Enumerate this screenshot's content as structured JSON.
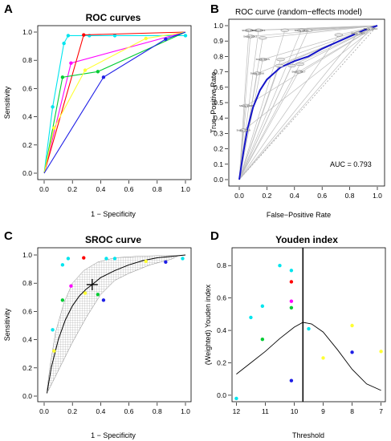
{
  "chart_data": [
    {
      "panel": "A",
      "type": "line",
      "title": "ROC curves",
      "xlabel": "1 − Specificity",
      "ylabel": "Sensitivity",
      "xlim": [
        0,
        1
      ],
      "ylim": [
        0,
        1
      ],
      "xticks": [
        "0.0",
        "0.2",
        "0.4",
        "0.6",
        "0.8",
        "1.0"
      ],
      "yticks": [
        "0.0",
        "0.2",
        "0.4",
        "0.6",
        "0.8",
        "1.0"
      ],
      "series": [
        {
          "color": "#00e5ee",
          "points": [
            [
              0,
              0
            ],
            [
              0.06,
              0.47
            ],
            [
              0.14,
              0.92
            ],
            [
              0.17,
              0.975
            ],
            [
              0.32,
              0.975
            ],
            [
              0.5,
              0.975
            ],
            [
              1,
              0.975
            ]
          ]
        },
        {
          "color": "#ff00ff",
          "points": [
            [
              0,
              0
            ],
            [
              0.19,
              0.78
            ],
            [
              1,
              1
            ]
          ]
        },
        {
          "color": "#ff0000",
          "points": [
            [
              0,
              0
            ],
            [
              0.28,
              0.98
            ],
            [
              1,
              1
            ]
          ]
        },
        {
          "color": "#00cc33",
          "points": [
            [
              0,
              0
            ],
            [
              0.13,
              0.68
            ],
            [
              0.38,
              0.72
            ],
            [
              1,
              1
            ]
          ]
        },
        {
          "color": "#ffff33",
          "points": [
            [
              0,
              0
            ],
            [
              0.07,
              0.32
            ],
            [
              0.29,
              0.73
            ],
            [
              0.72,
              0.955
            ],
            [
              1,
              1
            ]
          ]
        },
        {
          "color": "#1e1ee6",
          "points": [
            [
              0,
              0
            ],
            [
              0.42,
              0.68
            ],
            [
              0.86,
              0.95
            ],
            [
              1,
              1
            ]
          ]
        }
      ]
    },
    {
      "panel": "B",
      "type": "line",
      "title": "ROC curve (random−effects model)",
      "xlabel": "False−Positive Rate",
      "ylabel": "True−Positive Rate",
      "xlim": [
        0,
        1
      ],
      "ylim": [
        0,
        1
      ],
      "xticks": [
        "0.0",
        "0.2",
        "0.4",
        "0.6",
        "0.8",
        "1.0"
      ],
      "yticks": [
        "0.0",
        "0.1",
        "0.2",
        "0.3",
        "0.4",
        "0.5",
        "0.6",
        "0.7",
        "0.8",
        "0.9",
        "1.0"
      ],
      "annotation": "AUC = 0.793",
      "summary_curve": [
        [
          0,
          0
        ],
        [
          0.03,
          0.18
        ],
        [
          0.06,
          0.33
        ],
        [
          0.1,
          0.47
        ],
        [
          0.15,
          0.58
        ],
        [
          0.2,
          0.65
        ],
        [
          0.3,
          0.73
        ],
        [
          0.4,
          0.77
        ],
        [
          0.5,
          0.8
        ],
        [
          0.6,
          0.85
        ],
        [
          0.7,
          0.89
        ],
        [
          0.8,
          0.93
        ],
        [
          0.9,
          0.97
        ],
        [
          1,
          1
        ]
      ],
      "study_points": [
        {
          "fpr": 0.07,
          "tpr": 0.97
        },
        {
          "fpr": 0.14,
          "tpr": 0.97
        },
        {
          "fpr": 0.08,
          "tpr": 0.93
        },
        {
          "fpr": 0.17,
          "tpr": 0.92
        },
        {
          "fpr": 0.33,
          "tpr": 0.97
        },
        {
          "fpr": 0.45,
          "tpr": 0.97
        },
        {
          "fpr": 0.5,
          "tpr": 0.97
        },
        {
          "fpr": 0.95,
          "tpr": 0.98
        },
        {
          "fpr": 0.17,
          "tpr": 0.78
        },
        {
          "fpr": 0.3,
          "tpr": 0.78
        },
        {
          "fpr": 0.13,
          "tpr": 0.69
        },
        {
          "fpr": 0.43,
          "tpr": 0.7
        },
        {
          "fpr": 0.38,
          "tpr": 0.74
        },
        {
          "fpr": 0.44,
          "tpr": 0.75
        },
        {
          "fpr": 0.05,
          "tpr": 0.48
        },
        {
          "fpr": 0.03,
          "tpr": 0.32
        },
        {
          "fpr": 0.72,
          "tpr": 0.94
        },
        {
          "fpr": 0.86,
          "tpr": 0.95
        },
        {
          "fpr": 0.29,
          "tpr": 0.74
        }
      ],
      "study_labels": [
        {
          "fpr": 0.07,
          "tpr": 0.97,
          "text": "Study 2010"
        },
        {
          "fpr": 0.14,
          "tpr": 0.97,
          "text": "Study 2011"
        },
        {
          "fpr": 0.08,
          "tpr": 0.93,
          "text": "Study 2012"
        },
        {
          "fpr": 0.45,
          "tpr": 0.97,
          "text": "Study 2013"
        },
        {
          "fpr": 0.95,
          "tpr": 0.98,
          "text": "Study 2014"
        },
        {
          "fpr": 0.17,
          "tpr": 0.78,
          "text": "Study 2015"
        },
        {
          "fpr": 0.13,
          "tpr": 0.69,
          "text": "Study 2016"
        },
        {
          "fpr": 0.43,
          "tpr": 0.7,
          "text": "Study 2017"
        },
        {
          "fpr": 0.05,
          "tpr": 0.48,
          "text": "Study 2018"
        },
        {
          "fpr": 0.03,
          "tpr": 0.32,
          "text": "Study 2019"
        },
        {
          "fpr": 0.86,
          "tpr": 0.95,
          "text": "Study 2020"
        }
      ]
    },
    {
      "panel": "C",
      "type": "scatter",
      "title": "SROC curve",
      "xlabel": "1 − Specificity",
      "ylabel": "Sensitivity",
      "xlim": [
        0,
        1
      ],
      "ylim": [
        0,
        1
      ],
      "xticks": [
        "0.0",
        "0.2",
        "0.4",
        "0.6",
        "0.8",
        "1.0"
      ],
      "yticks": [
        "0.0",
        "0.2",
        "0.4",
        "0.6",
        "0.8",
        "1.0"
      ],
      "summary_point": [
        0.34,
        0.79
      ],
      "sroc_curve": [
        [
          0.02,
          0.02
        ],
        [
          0.05,
          0.2
        ],
        [
          0.1,
          0.4
        ],
        [
          0.15,
          0.54
        ],
        [
          0.2,
          0.64
        ],
        [
          0.25,
          0.71
        ],
        [
          0.3,
          0.76
        ],
        [
          0.34,
          0.79
        ],
        [
          0.4,
          0.84
        ],
        [
          0.5,
          0.89
        ],
        [
          0.6,
          0.93
        ],
        [
          0.7,
          0.96
        ],
        [
          0.8,
          0.98
        ],
        [
          0.9,
          0.99
        ],
        [
          1,
          1
        ]
      ],
      "prediction_region": [
        [
          0.02,
          0.04
        ],
        [
          0.04,
          0.2
        ],
        [
          0.08,
          0.45
        ],
        [
          0.14,
          0.66
        ],
        [
          0.2,
          0.8
        ],
        [
          0.28,
          0.89
        ],
        [
          0.38,
          0.95
        ],
        [
          0.5,
          0.98
        ],
        [
          0.65,
          0.99
        ],
        [
          0.8,
          0.995
        ],
        [
          0.95,
          0.995
        ],
        [
          0.9,
          0.97
        ],
        [
          0.75,
          0.93
        ],
        [
          0.6,
          0.87
        ],
        [
          0.5,
          0.82
        ],
        [
          0.4,
          0.72
        ],
        [
          0.3,
          0.56
        ],
        [
          0.2,
          0.38
        ],
        [
          0.12,
          0.22
        ],
        [
          0.06,
          0.1
        ],
        [
          0.03,
          0.04
        ]
      ],
      "points": [
        {
          "x": 0.06,
          "y": 0.47,
          "color": "#00e5ee"
        },
        {
          "x": 0.13,
          "y": 0.93,
          "color": "#00e5ee"
        },
        {
          "x": 0.17,
          "y": 0.975,
          "color": "#00e5ee"
        },
        {
          "x": 0.44,
          "y": 0.975,
          "color": "#00e5ee"
        },
        {
          "x": 0.5,
          "y": 0.975,
          "color": "#00e5ee"
        },
        {
          "x": 0.98,
          "y": 0.975,
          "color": "#00e5ee"
        },
        {
          "x": 0.19,
          "y": 0.78,
          "color": "#ff00ff"
        },
        {
          "x": 0.28,
          "y": 0.98,
          "color": "#ff0000"
        },
        {
          "x": 0.13,
          "y": 0.68,
          "color": "#00cc33"
        },
        {
          "x": 0.38,
          "y": 0.72,
          "color": "#00cc33"
        },
        {
          "x": 0.07,
          "y": 0.32,
          "color": "#ffff33"
        },
        {
          "x": 0.29,
          "y": 0.73,
          "color": "#ffff33"
        },
        {
          "x": 0.72,
          "y": 0.955,
          "color": "#ffff33"
        },
        {
          "x": 0.42,
          "y": 0.68,
          "color": "#1e1ee6"
        },
        {
          "x": 0.86,
          "y": 0.95,
          "color": "#1e1ee6"
        }
      ]
    },
    {
      "panel": "D",
      "type": "scatter",
      "title": "Youden index",
      "xlabel": "Threshold",
      "ylabel": "(Weighted) Youden index",
      "xlim": [
        12.15,
        6.85
      ],
      "ylim": [
        -0.04,
        0.91
      ],
      "xticks": [
        "12",
        "11",
        "10",
        "9",
        "8",
        "7"
      ],
      "yticks": [
        "0.0",
        "0.2",
        "0.4",
        "0.6",
        "0.8"
      ],
      "cutoff": 9.7,
      "curve": [
        [
          12,
          0.13
        ],
        [
          11.5,
          0.2
        ],
        [
          11,
          0.27
        ],
        [
          10.5,
          0.35
        ],
        [
          10,
          0.42
        ],
        [
          9.7,
          0.45
        ],
        [
          9.4,
          0.44
        ],
        [
          9,
          0.39
        ],
        [
          8.5,
          0.28
        ],
        [
          8,
          0.16
        ],
        [
          7.5,
          0.07
        ],
        [
          7,
          0.03
        ]
      ],
      "points": [
        {
          "x": 12,
          "y": -0.02,
          "color": "#00e5ee"
        },
        {
          "x": 11.5,
          "y": 0.48,
          "color": "#00e5ee"
        },
        {
          "x": 11.1,
          "y": 0.55,
          "color": "#00e5ee"
        },
        {
          "x": 10.5,
          "y": 0.8,
          "color": "#00e5ee"
        },
        {
          "x": 10.1,
          "y": 0.77,
          "color": "#00e5ee"
        },
        {
          "x": 9.5,
          "y": 0.41,
          "color": "#00e5ee"
        },
        {
          "x": 10.1,
          "y": 0.7,
          "color": "#ff0000"
        },
        {
          "x": 10.1,
          "y": 0.58,
          "color": "#ff00ff"
        },
        {
          "x": 11.1,
          "y": 0.345,
          "color": "#00cc33"
        },
        {
          "x": 10.1,
          "y": 0.54,
          "color": "#00cc33"
        },
        {
          "x": 8,
          "y": 0.43,
          "color": "#ffff33"
        },
        {
          "x": 9,
          "y": 0.23,
          "color": "#ffff33"
        },
        {
          "x": 7,
          "y": 0.27,
          "color": "#ffff33"
        },
        {
          "x": 10.1,
          "y": 0.09,
          "color": "#1e1ee6"
        },
        {
          "x": 8,
          "y": 0.265,
          "color": "#1e1ee6"
        }
      ]
    }
  ],
  "panel_letters": [
    "A",
    "B",
    "C",
    "D"
  ]
}
